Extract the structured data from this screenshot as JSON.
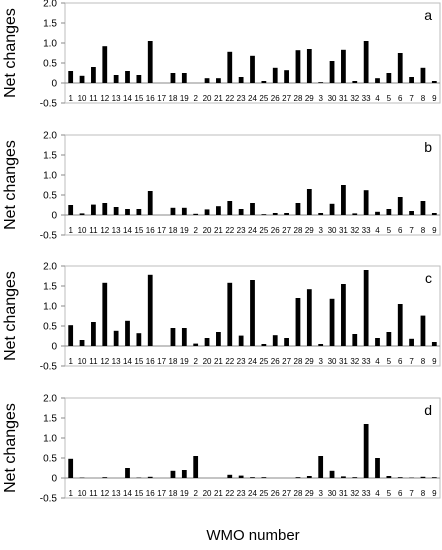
{
  "figure": {
    "y_axis_label": "Net changes",
    "x_axis_label": "WMO number"
  },
  "chart_data": [
    {
      "type": "bar",
      "panel_label": "a",
      "categories": [
        "1",
        "10",
        "11",
        "12",
        "13",
        "14",
        "15",
        "16",
        "17",
        "18",
        "19",
        "2",
        "20",
        "21",
        "22",
        "23",
        "24",
        "25",
        "26",
        "27",
        "28",
        "29",
        "3",
        "30",
        "31",
        "32",
        "33",
        "4",
        "5",
        "6",
        "7",
        "8",
        "9"
      ],
      "values": [
        0.3,
        0.18,
        0.4,
        0.92,
        0.2,
        0.3,
        0.2,
        1.05,
        0,
        0.25,
        0.25,
        0,
        0.12,
        0.12,
        0.78,
        0.15,
        0.68,
        0.05,
        0.38,
        0.32,
        0.82,
        0.85,
        0.02,
        0.55,
        0.83,
        0.05,
        1.05,
        0.12,
        0.25,
        0.75,
        0.15,
        0.38,
        0.05
      ],
      "yticks": [
        "-0.5",
        "0",
        "0.5",
        "1.0",
        "1.5",
        "2.0"
      ],
      "ylim": [
        -0.5,
        2.0
      ]
    },
    {
      "type": "bar",
      "panel_label": "b",
      "categories": [
        "1",
        "10",
        "11",
        "12",
        "13",
        "14",
        "15",
        "16",
        "17",
        "18",
        "19",
        "2",
        "20",
        "21",
        "22",
        "23",
        "24",
        "25",
        "26",
        "27",
        "28",
        "29",
        "3",
        "30",
        "31",
        "32",
        "33",
        "4",
        "5",
        "6",
        "7",
        "8",
        "9"
      ],
      "values": [
        0.25,
        0.04,
        0.26,
        0.3,
        0.2,
        0.15,
        0.15,
        0.6,
        0,
        0.18,
        0.18,
        0.03,
        0.14,
        0.22,
        0.35,
        0.15,
        0.3,
        0.02,
        0.05,
        0.05,
        0.3,
        0.65,
        0.05,
        0.28,
        0.75,
        0.04,
        0.62,
        0.08,
        0.15,
        0.45,
        0.1,
        0.35,
        0.05
      ],
      "yticks": [
        "-0.5",
        "0",
        "0.5",
        "1.0",
        "1.5",
        "2.0"
      ],
      "ylim": [
        -0.5,
        2.0
      ]
    },
    {
      "type": "bar",
      "panel_label": "c",
      "categories": [
        "1",
        "10",
        "11",
        "12",
        "13",
        "14",
        "15",
        "16",
        "17",
        "18",
        "19",
        "2",
        "20",
        "21",
        "22",
        "23",
        "24",
        "25",
        "26",
        "27",
        "28",
        "29",
        "3",
        "30",
        "31",
        "32",
        "33",
        "4",
        "5",
        "6",
        "7",
        "8",
        "9"
      ],
      "values": [
        0.52,
        0.15,
        0.6,
        1.58,
        0.38,
        0.63,
        0.32,
        1.78,
        0,
        0.45,
        0.45,
        0.06,
        0.2,
        0.35,
        1.58,
        0.26,
        1.65,
        0.05,
        0.27,
        0.2,
        1.2,
        1.42,
        0.05,
        1.18,
        1.55,
        0.3,
        1.9,
        0.2,
        0.35,
        1.05,
        0.18,
        0.76,
        0.1
      ],
      "yticks": [
        "-0.5",
        "0",
        "0.5",
        "1.0",
        "1.5",
        "2.0"
      ],
      "ylim": [
        -0.5,
        2.0
      ]
    },
    {
      "type": "bar",
      "panel_label": "d",
      "categories": [
        "1",
        "10",
        "11",
        "12",
        "13",
        "14",
        "15",
        "16",
        "17",
        "18",
        "19",
        "2",
        "20",
        "21",
        "22",
        "23",
        "24",
        "25",
        "26",
        "27",
        "28",
        "29",
        "3",
        "30",
        "31",
        "32",
        "33",
        "4",
        "5",
        "6",
        "7",
        "8",
        "9"
      ],
      "values": [
        0.48,
        0.01,
        0,
        0.02,
        0,
        0.25,
        0.01,
        0.03,
        0,
        0.18,
        0.2,
        0.55,
        0,
        0,
        0.08,
        0.06,
        0.02,
        0.02,
        0,
        0,
        0.02,
        0.05,
        0.55,
        0.18,
        0.04,
        0.02,
        1.35,
        0.5,
        0.05,
        0.02,
        0.01,
        0.03,
        0.02
      ],
      "yticks": [
        "-0.5",
        "0",
        "0.5",
        "1.0",
        "1.5",
        "2.0"
      ],
      "ylim": [
        -0.5,
        2.0
      ]
    }
  ]
}
